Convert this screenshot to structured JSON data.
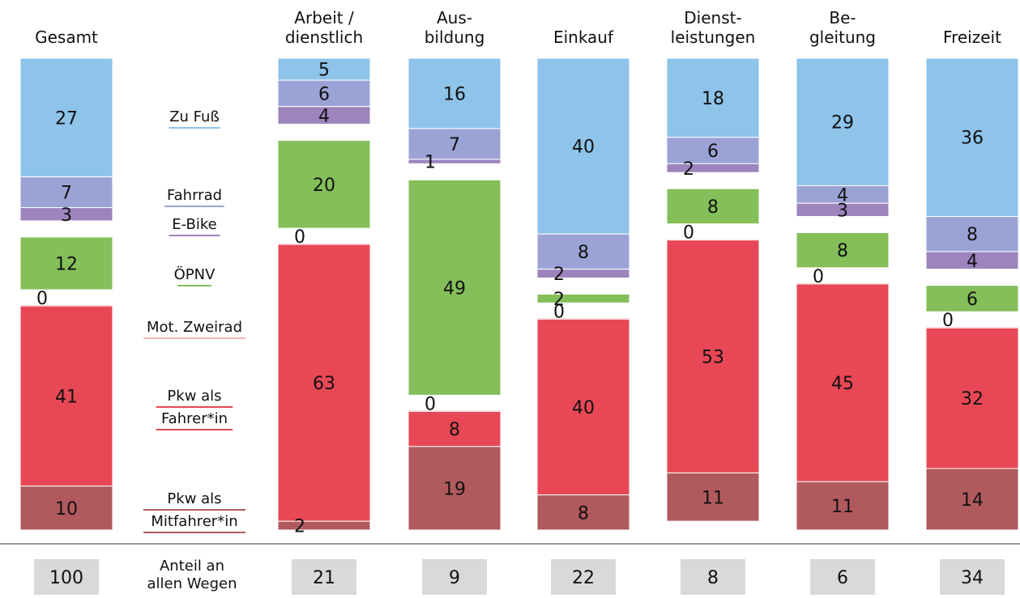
{
  "chart_data": {
    "type": "bar",
    "stacked": true,
    "categories": [
      "Gesamt",
      "Arbeit /\ndienstlich",
      "Aus-\nbildung",
      "Einkauf",
      "Dienst-\nleistungen",
      "Be-\ngleitung",
      "Freizeit"
    ],
    "series": [
      {
        "name": "Zu Fuß",
        "color": "#8ec3ea",
        "values": [
          27,
          5,
          16,
          40,
          18,
          29,
          36
        ]
      },
      {
        "name": "Fahrrad",
        "color": "#9ba3d6",
        "values": [
          7,
          6,
          7,
          8,
          6,
          4,
          8
        ]
      },
      {
        "name": "E-Bike",
        "color": "#9d84bd",
        "values": [
          3,
          4,
          1,
          2,
          2,
          3,
          4
        ]
      },
      {
        "name": "ÖPNV",
        "color": "#84bf5a",
        "values": [
          12,
          20,
          49,
          2,
          8,
          8,
          6
        ]
      },
      {
        "name": "Mot. Zweirad",
        "color": "#f1b7b8",
        "values": [
          0,
          0,
          0,
          0,
          0,
          0,
          0
        ]
      },
      {
        "name": "Pkw als\nFahrer*in",
        "color": "#e84855",
        "values": [
          41,
          63,
          8,
          40,
          53,
          45,
          32
        ]
      },
      {
        "name": "Pkw als\nMitfahrer*in",
        "color": "#b05a5e",
        "values": [
          10,
          2,
          19,
          8,
          11,
          11,
          14
        ]
      }
    ],
    "share_label": "Anteil an\nallen Wegen",
    "shares": [
      100,
      21,
      9,
      22,
      8,
      6,
      34
    ]
  }
}
